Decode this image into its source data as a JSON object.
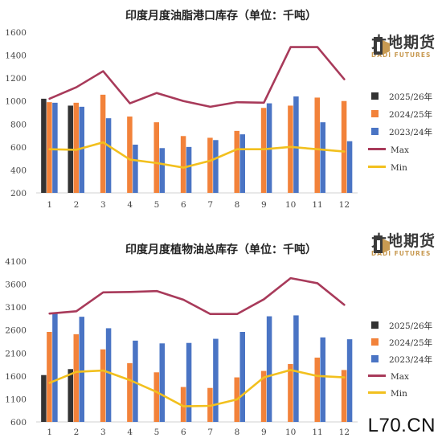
{
  "logo": {
    "cn": "大地期货",
    "en": "DADI FUTURES"
  },
  "watermark": "L70.CN",
  "colors": {
    "s2025": "#333333",
    "s2024": "#f2823a",
    "s2023": "#4a74c4",
    "max": "#a83a5a",
    "min": "#f2c01e",
    "logo_gold": "#c89a52"
  },
  "chart_data": [
    {
      "type": "bar",
      "title": "印度月度油脂港口库存（单位：千吨）",
      "categories": [
        "1",
        "2",
        "3",
        "4",
        "5",
        "6",
        "7",
        "8",
        "9",
        "10",
        "11",
        "12"
      ],
      "ylim": [
        200,
        1600
      ],
      "yticks": [
        "200",
        "400",
        "600",
        "800",
        "1000",
        "1200",
        "1400",
        "1600"
      ],
      "grid": false,
      "legend": "right",
      "series": [
        {
          "name": "2025/26年",
          "kind": "bar",
          "color": "#333333",
          "values": [
            1020,
            960,
            null,
            null,
            null,
            null,
            null,
            null,
            null,
            null,
            null,
            null
          ]
        },
        {
          "name": "2024/25年",
          "kind": "bar",
          "color": "#f2823a",
          "values": [
            990,
            985,
            1055,
            865,
            815,
            695,
            680,
            740,
            940,
            960,
            1030,
            1000
          ]
        },
        {
          "name": "2023/24年",
          "kind": "bar",
          "color": "#4a74c4",
          "values": [
            985,
            950,
            850,
            620,
            590,
            600,
            660,
            710,
            980,
            1040,
            815,
            650
          ]
        },
        {
          "name": "Max",
          "kind": "line",
          "color": "#a83a5a",
          "values": [
            1020,
            1120,
            1260,
            980,
            1070,
            1000,
            950,
            990,
            985,
            1470,
            1470,
            1190
          ]
        },
        {
          "name": "Min",
          "kind": "line",
          "color": "#f2c01e",
          "values": [
            580,
            575,
            640,
            490,
            460,
            420,
            480,
            580,
            580,
            600,
            580,
            560
          ]
        }
      ]
    },
    {
      "type": "bar",
      "title": "印度月度植物油总库存（单位：千吨）",
      "categories": [
        "1",
        "2",
        "3",
        "4",
        "5",
        "6",
        "7",
        "8",
        "9",
        "10",
        "11",
        "12"
      ],
      "ylim": [
        600,
        4100
      ],
      "yticks": [
        "600",
        "1100",
        "1600",
        "2100",
        "2600",
        "3100",
        "3600",
        "4100"
      ],
      "grid": false,
      "legend": "right",
      "series": [
        {
          "name": "2025/26年",
          "kind": "bar",
          "color": "#333333",
          "values": [
            1620,
            1750,
            null,
            null,
            null,
            null,
            null,
            null,
            null,
            null,
            null,
            null
          ]
        },
        {
          "name": "2024/25年",
          "kind": "bar",
          "color": "#f2823a",
          "values": [
            2560,
            2510,
            2180,
            1880,
            1680,
            1360,
            1340,
            1570,
            1710,
            1860,
            2000,
            1730
          ]
        },
        {
          "name": "2023/24年",
          "kind": "bar",
          "color": "#4a74c4",
          "values": [
            2960,
            2890,
            2640,
            2370,
            2310,
            2320,
            2410,
            2560,
            2900,
            2920,
            2440,
            2400
          ]
        },
        {
          "name": "Max",
          "kind": "line",
          "color": "#a83a5a",
          "values": [
            2960,
            3010,
            3420,
            3430,
            3450,
            3260,
            2950,
            2950,
            3270,
            3730,
            3620,
            3150
          ]
        },
        {
          "name": "Min",
          "kind": "line",
          "color": "#f2c01e",
          "values": [
            1450,
            1690,
            1720,
            1510,
            1250,
            940,
            950,
            1090,
            1570,
            1730,
            1600,
            1570
          ]
        }
      ]
    }
  ]
}
